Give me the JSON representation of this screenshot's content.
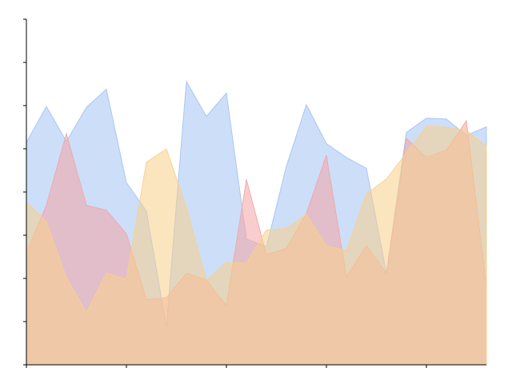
{
  "chart_data": {
    "type": "area",
    "title": "",
    "xlabel": "",
    "ylabel": "",
    "x": [
      0,
      1,
      2,
      3,
      4,
      5,
      6,
      7,
      8,
      9,
      10,
      11,
      12,
      13,
      14,
      15,
      16,
      17,
      18,
      19,
      20,
      21,
      22,
      23
    ],
    "xlim": [
      0,
      23
    ],
    "ylim": [
      0,
      8
    ],
    "x_ticks": [
      0,
      5,
      10,
      15,
      20
    ],
    "y_ticks": [
      0,
      1,
      2,
      3,
      4,
      5,
      6,
      7,
      8
    ],
    "show_tick_labels": false,
    "grid": false,
    "legend": "none",
    "overlap_color": "#d5b4a0",
    "series": [
      {
        "color": "#a4c2f4",
        "opacity": 0.55,
        "values": [
          5.15,
          5.98,
          5.17,
          5.96,
          6.38,
          4.22,
          3.56,
          0.88,
          6.56,
          5.75,
          6.29,
          2.91,
          2.73,
          4.6,
          6.02,
          5.12,
          4.8,
          4.55,
          2.12,
          5.38,
          5.71,
          5.69,
          5.31,
          5.51
        ]
      },
      {
        "color": "#f4a4a4",
        "opacity": 0.55,
        "values": [
          2.6,
          3.69,
          5.35,
          3.69,
          3.58,
          3.03,
          1.51,
          1.55,
          2.12,
          1.96,
          1.37,
          4.29,
          2.55,
          2.7,
          3.51,
          4.85,
          2.04,
          2.76,
          2.12,
          5.24,
          4.8,
          4.97,
          5.65,
          1.82
        ]
      },
      {
        "color": "#f8d08a",
        "opacity": 0.55,
        "values": [
          3.77,
          3.31,
          2.02,
          1.21,
          2.12,
          1.98,
          4.69,
          5.0,
          3.64,
          1.96,
          2.37,
          2.36,
          3.12,
          3.16,
          3.48,
          2.75,
          2.65,
          3.96,
          4.3,
          4.91,
          5.53,
          5.5,
          5.42,
          5.06
        ]
      }
    ]
  }
}
